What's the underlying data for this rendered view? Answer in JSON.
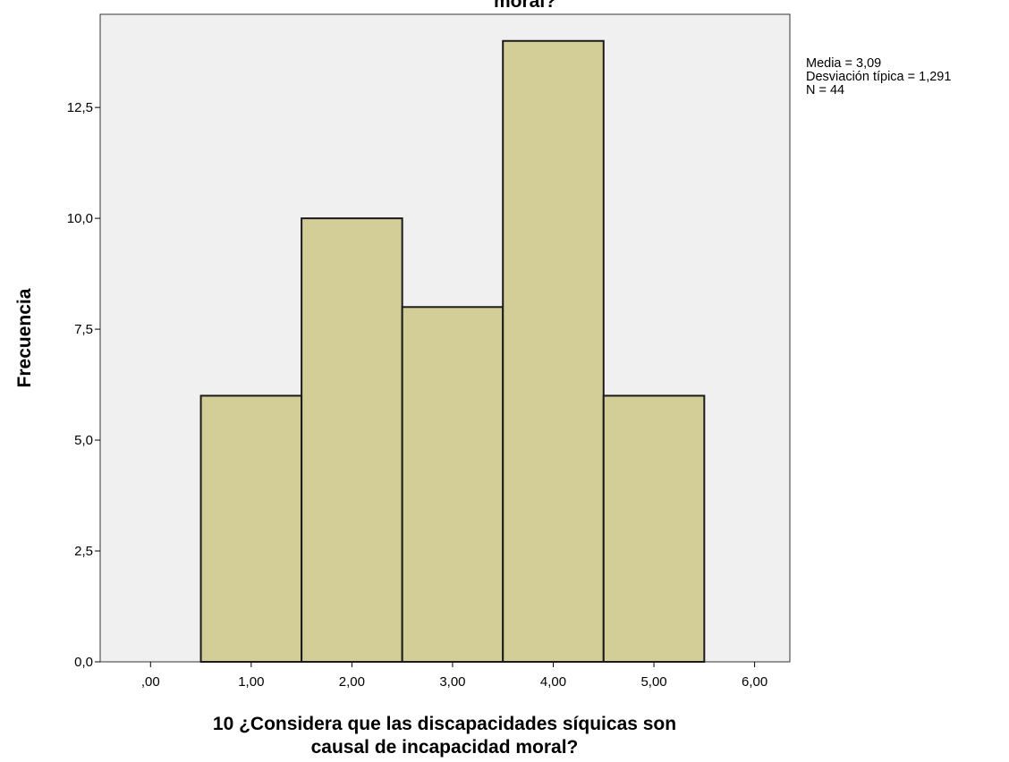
{
  "chart_data": {
    "type": "bar",
    "subtype": "histogram",
    "title_visible_fragment": "moral?",
    "xlabel_lines": [
      "10 ¿Considera que las discapacidades síquicas son",
      "causal de incapacidad moral?"
    ],
    "ylabel": "Frecuencia",
    "bins": [
      {
        "center": 1.0,
        "value": 6
      },
      {
        "center": 2.0,
        "value": 10
      },
      {
        "center": 3.0,
        "value": 8
      },
      {
        "center": 4.0,
        "value": 14
      },
      {
        "center": 5.0,
        "value": 6
      }
    ],
    "bin_width": 1.0,
    "xlim": [
      -0.5,
      6.35
    ],
    "ylim": [
      0,
      14.6
    ],
    "x_ticks": [
      0,
      1,
      2,
      3,
      4,
      5,
      6
    ],
    "x_tick_labels": [
      ",00",
      "1,00",
      "2,00",
      "3,00",
      "4,00",
      "5,00",
      "6,00"
    ],
    "y_ticks": [
      0,
      2.5,
      5,
      7.5,
      10,
      12.5
    ],
    "y_tick_labels": [
      "0,0",
      "2,5",
      "5,0",
      "7,5",
      "10,0",
      "12,5"
    ],
    "statistics": [
      "Media = 3,09",
      "Desviación típica = 1,291",
      "N = 44"
    ],
    "bar_fill": "#d3cd98",
    "bar_stroke": "#1a1a1a",
    "plot_background": "#f0f0f0",
    "grid": false
  }
}
